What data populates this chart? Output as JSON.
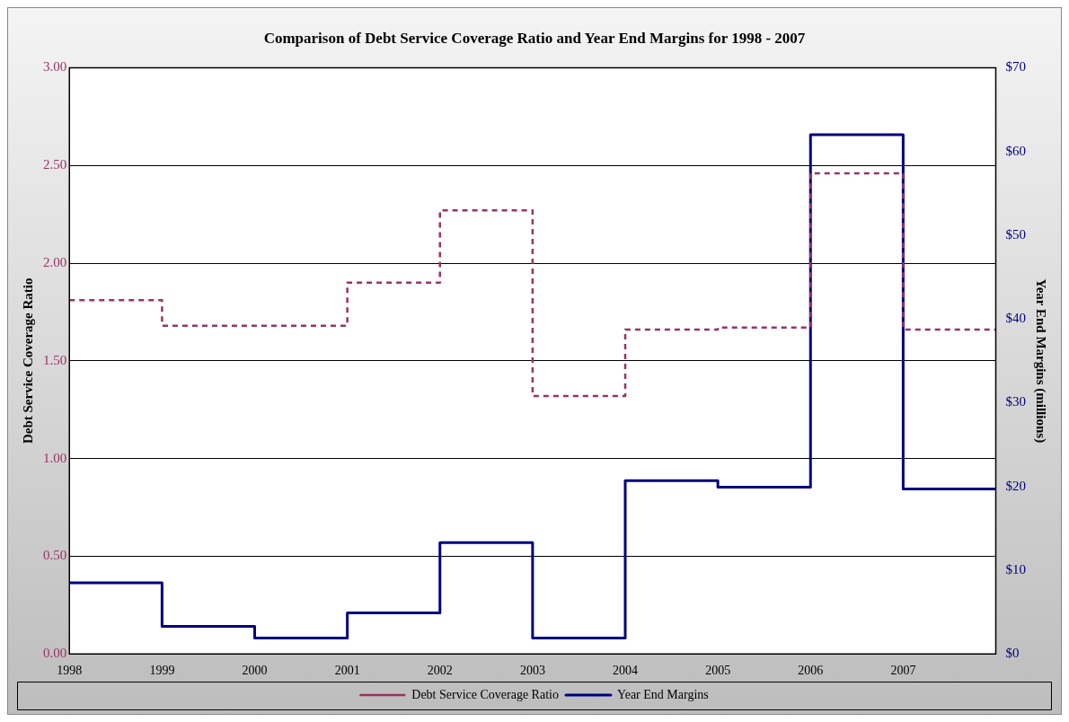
{
  "chart_data": {
    "type": "step",
    "title": "Comparison of Debt Service Coverage Ratio and Year End Margins for 1998 - 2007",
    "ylabel": "Debt Service Coverage Ratio",
    "y2label": "Year End Margins (millions)",
    "x": [
      1998,
      1999,
      2000,
      2001,
      2002,
      2003,
      2004,
      2005,
      2006,
      2007,
      2008
    ],
    "xlim": [
      1998,
      2008
    ],
    "xticks": [
      1998,
      1999,
      2000,
      2001,
      2002,
      2003,
      2004,
      2005,
      2006,
      2007
    ],
    "ylim": [
      0,
      3
    ],
    "yticks": [
      {
        "value": 0,
        "label": "0.00"
      },
      {
        "value": 0.5,
        "label": "0.50"
      },
      {
        "value": 1,
        "label": "1.00"
      },
      {
        "value": 1.5,
        "label": "1.50"
      },
      {
        "value": 2,
        "label": "2.00"
      },
      {
        "value": 2.5,
        "label": "2.50"
      },
      {
        "value": 3,
        "label": "3.00"
      }
    ],
    "y2lim": [
      0,
      70
    ],
    "y2ticks": [
      {
        "value": 0,
        "label": "$0"
      },
      {
        "value": 10,
        "label": "$10"
      },
      {
        "value": 20,
        "label": "$20"
      },
      {
        "value": 30,
        "label": "$30"
      },
      {
        "value": 40,
        "label": "$40"
      },
      {
        "value": 50,
        "label": "$50"
      },
      {
        "value": 60,
        "label": "$60"
      },
      {
        "value": 70,
        "label": "$70"
      }
    ],
    "series": [
      {
        "name": "Debt Service Coverage Ratio",
        "color": "#993366",
        "line_style": "dashed",
        "values": [
          1.81,
          1.68,
          1.68,
          1.9,
          2.27,
          1.32,
          1.66,
          1.67,
          2.46,
          1.66,
          1.66
        ]
      },
      {
        "name": "Year End Margins",
        "color": "#000080",
        "line_style": "solid",
        "axis": "y2",
        "values": [
          8.5,
          3.3,
          1.9,
          4.9,
          13.3,
          1.9,
          20.7,
          19.9,
          62.0,
          19.7,
          19.7
        ]
      }
    ],
    "grid": "y",
    "legend": "bottom"
  }
}
